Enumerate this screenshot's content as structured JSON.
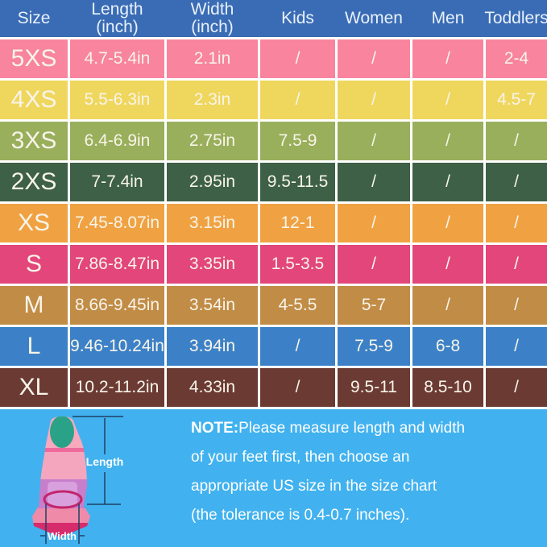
{
  "chart_data": {
    "type": "table",
    "columns": [
      "Size",
      "Length (inch)",
      "Width (inch)",
      "Kids",
      "Women",
      "Men",
      "Toddlers"
    ],
    "column_lines": [
      [
        "Size"
      ],
      [
        "Length",
        "(inch)"
      ],
      [
        "Width",
        "(inch)"
      ],
      [
        "Kids"
      ],
      [
        "Women"
      ],
      [
        "Men"
      ],
      [
        "Toddlers"
      ]
    ],
    "rows": [
      [
        "5XS",
        "4.7-5.4in",
        "2.1in",
        "/",
        "/",
        "/",
        "2-4"
      ],
      [
        "4XS",
        "5.5-6.3in",
        "2.3in",
        "/",
        "/",
        "/",
        "4.5-7"
      ],
      [
        "3XS",
        "6.4-6.9in",
        "2.75in",
        "7.5-9",
        "/",
        "/",
        "/"
      ],
      [
        "2XS",
        "7-7.4in",
        "2.95in",
        "9.5-11.5",
        "/",
        "/",
        "/"
      ],
      [
        "XS",
        "7.45-8.07in",
        "3.15in",
        "12-1",
        "/",
        "/",
        "/"
      ],
      [
        "S",
        "7.86-8.47in",
        "3.35in",
        "1.5-3.5",
        "/",
        "/",
        "/"
      ],
      [
        "M",
        "8.66-9.45in",
        "3.54in",
        "4-5.5",
        "5-7",
        "/",
        "/"
      ],
      [
        "L",
        "9.46-10.24in",
        "3.94in",
        "/",
        "7.5-9",
        "6-8",
        "/"
      ],
      [
        "XL",
        "10.2-11.2in",
        "4.33in",
        "/",
        "9.5-11",
        "8.5-10",
        "/"
      ]
    ],
    "legend_position": "none",
    "grid": true
  },
  "style": {
    "header_bg": "#3a6cb5",
    "header_text": "#e9f1fb",
    "cell_text": "#f8f4ea",
    "grid_line": "#ffffff",
    "footer_bg": "#41b2ef",
    "row_colors": [
      "#f8849e",
      "#efd75e",
      "#99af5b",
      "#3d6046",
      "#f0a242",
      "#e2467a",
      "#c18c46",
      "#3c81c7",
      "#6b3b33"
    ],
    "fin_colors": {
      "tip": "#2aa287",
      "band_light_pink": "#f9a9be",
      "band_hot_pink": "#ee6a9a",
      "band_pink": "#f5a6bf",
      "band_orchid": "#c77ecb",
      "pocket_inner": "#d8a0dd",
      "band_rose": "#ef8ba8",
      "blade": "#d62c6c",
      "opening_rim": "#c2256a",
      "dimension_line": "#1f3f63"
    }
  },
  "diagram": {
    "length_label": "Length",
    "width_label": "Width"
  },
  "note": {
    "prefix": "NOTE:",
    "lines": [
      "Please measure length and width",
      "of your feet first, then choose an",
      "appropriate US size in the size chart",
      "(the tolerance is 0.4-0.7 inches)."
    ]
  }
}
